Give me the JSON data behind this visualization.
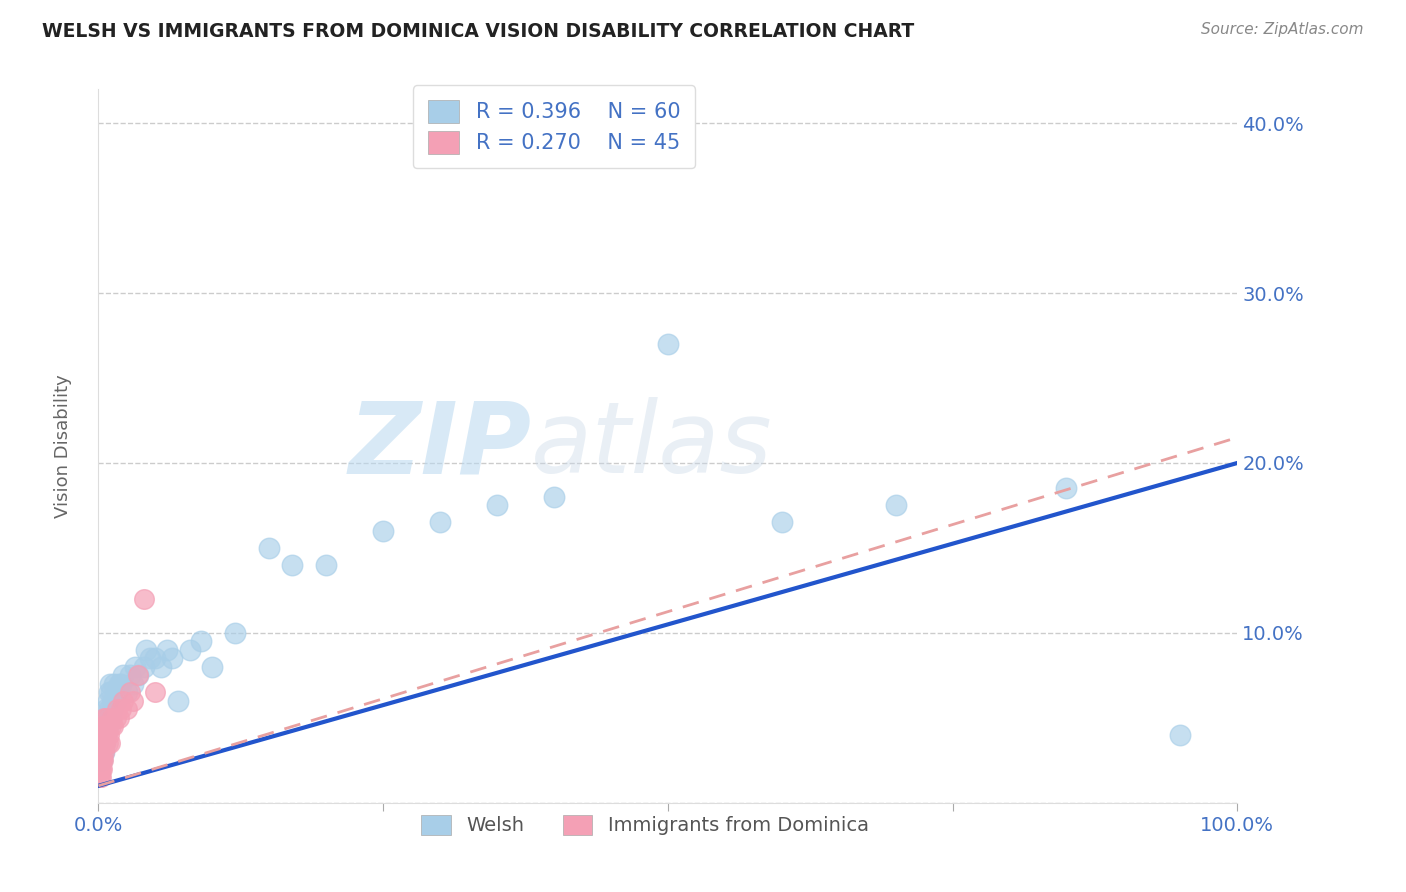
{
  "title": "WELSH VS IMMIGRANTS FROM DOMINICA VISION DISABILITY CORRELATION CHART",
  "source": "Source: ZipAtlas.com",
  "ylabel": "Vision Disability",
  "xlim": [
    0,
    1.0
  ],
  "ylim": [
    0,
    0.42
  ],
  "watermark": "ZIPatlas",
  "welsh_color": "#A8CEE8",
  "welsh_edge_color": "#A8CEE8",
  "dominica_color": "#F4A0B5",
  "dominica_edge_color": "#F4A0B5",
  "welsh_line_color": "#2255CC",
  "dominica_line_color": "#E8A0A0",
  "legend_welsh_R": "R = 0.396",
  "legend_welsh_N": "N = 60",
  "legend_dominica_R": "R = 0.270",
  "legend_dominica_N": "N = 45",
  "welsh_line_x0": 0.0,
  "welsh_line_y0": 0.01,
  "welsh_line_x1": 1.0,
  "welsh_line_y1": 0.2,
  "dominica_line_x0": 0.0,
  "dominica_line_y0": 0.01,
  "dominica_line_x1": 1.0,
  "dominica_line_y1": 0.215,
  "welsh_x": [
    0.001,
    0.001,
    0.002,
    0.002,
    0.003,
    0.003,
    0.003,
    0.004,
    0.004,
    0.005,
    0.005,
    0.005,
    0.006,
    0.006,
    0.007,
    0.007,
    0.008,
    0.008,
    0.009,
    0.009,
    0.01,
    0.01,
    0.011,
    0.012,
    0.013,
    0.014,
    0.015,
    0.016,
    0.018,
    0.02,
    0.022,
    0.025,
    0.028,
    0.03,
    0.032,
    0.035,
    0.04,
    0.042,
    0.045,
    0.05,
    0.055,
    0.06,
    0.065,
    0.07,
    0.08,
    0.09,
    0.1,
    0.12,
    0.15,
    0.17,
    0.2,
    0.25,
    0.3,
    0.35,
    0.4,
    0.5,
    0.6,
    0.7,
    0.85,
    0.95
  ],
  "welsh_y": [
    0.03,
    0.035,
    0.03,
    0.04,
    0.025,
    0.035,
    0.04,
    0.03,
    0.04,
    0.03,
    0.035,
    0.045,
    0.035,
    0.05,
    0.04,
    0.055,
    0.045,
    0.06,
    0.055,
    0.065,
    0.05,
    0.07,
    0.065,
    0.055,
    0.06,
    0.07,
    0.06,
    0.065,
    0.07,
    0.07,
    0.075,
    0.065,
    0.075,
    0.07,
    0.08,
    0.075,
    0.08,
    0.09,
    0.085,
    0.085,
    0.08,
    0.09,
    0.085,
    0.06,
    0.09,
    0.095,
    0.08,
    0.1,
    0.15,
    0.14,
    0.14,
    0.16,
    0.165,
    0.175,
    0.18,
    0.27,
    0.165,
    0.175,
    0.185,
    0.04
  ],
  "dominica_x": [
    0.0003,
    0.0005,
    0.0005,
    0.0008,
    0.001,
    0.001,
    0.001,
    0.0015,
    0.0015,
    0.002,
    0.002,
    0.002,
    0.002,
    0.003,
    0.003,
    0.003,
    0.003,
    0.004,
    0.004,
    0.004,
    0.005,
    0.005,
    0.005,
    0.006,
    0.006,
    0.007,
    0.007,
    0.008,
    0.008,
    0.009,
    0.01,
    0.011,
    0.012,
    0.013,
    0.015,
    0.016,
    0.018,
    0.02,
    0.022,
    0.025,
    0.028,
    0.03,
    0.035,
    0.04,
    0.05
  ],
  "dominica_y": [
    0.015,
    0.02,
    0.025,
    0.03,
    0.015,
    0.025,
    0.035,
    0.02,
    0.03,
    0.015,
    0.025,
    0.035,
    0.02,
    0.02,
    0.03,
    0.04,
    0.025,
    0.025,
    0.035,
    0.045,
    0.03,
    0.04,
    0.05,
    0.035,
    0.045,
    0.04,
    0.05,
    0.035,
    0.045,
    0.04,
    0.035,
    0.045,
    0.05,
    0.045,
    0.05,
    0.055,
    0.05,
    0.055,
    0.06,
    0.055,
    0.065,
    0.06,
    0.075,
    0.12,
    0.065
  ],
  "background_color": "#FFFFFF",
  "grid_color": "#CCCCCC",
  "title_color": "#222222",
  "source_color": "#888888",
  "tick_color": "#4472C4",
  "ylabel_color": "#666666",
  "legend_text_color": "#4472C4"
}
